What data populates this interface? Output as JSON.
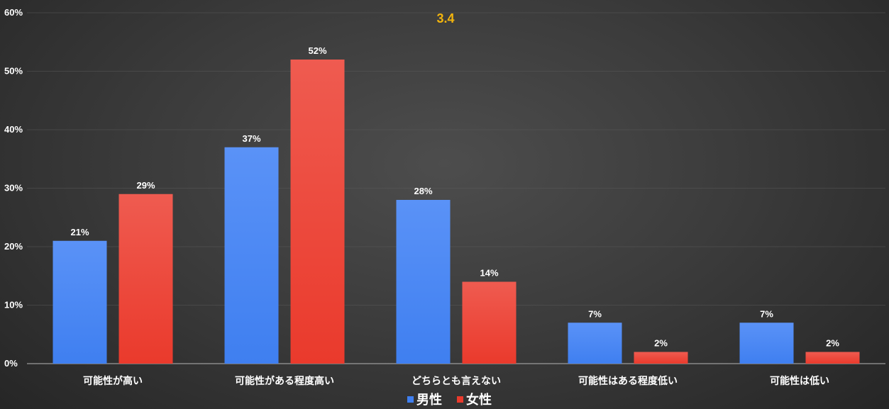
{
  "chart_data": {
    "type": "bar",
    "title": "3.4",
    "categories": [
      "可能性が高い",
      "可能性がある程度高い",
      "どちらとも言えない",
      "可能性はある程度低い",
      "可能性は低い"
    ],
    "series": [
      {
        "name": "男性",
        "values": [
          21,
          37,
          28,
          7,
          7
        ],
        "labels": [
          "21%",
          "37%",
          "28%",
          "7%",
          "7%"
        ]
      },
      {
        "name": "女性",
        "values": [
          29,
          52,
          14,
          2,
          2
        ],
        "labels": [
          "29%",
          "52%",
          "14%",
          "2%",
          "2%"
        ]
      }
    ],
    "ylim": [
      0,
      60
    ],
    "yticks": [
      "0%",
      "10%",
      "20%",
      "30%",
      "40%",
      "50%",
      "60%"
    ],
    "xlabel": "",
    "ylabel": "",
    "grid": true,
    "legend_position": "bottom"
  },
  "colors": {
    "series": [
      "#3f7ff0",
      "#ea3a2c"
    ],
    "series_light": [
      "#5a92f7",
      "#ef5b50"
    ],
    "title": "#f2b40d",
    "grid": "#5a5a5a",
    "axis": "#9a9a9a"
  }
}
